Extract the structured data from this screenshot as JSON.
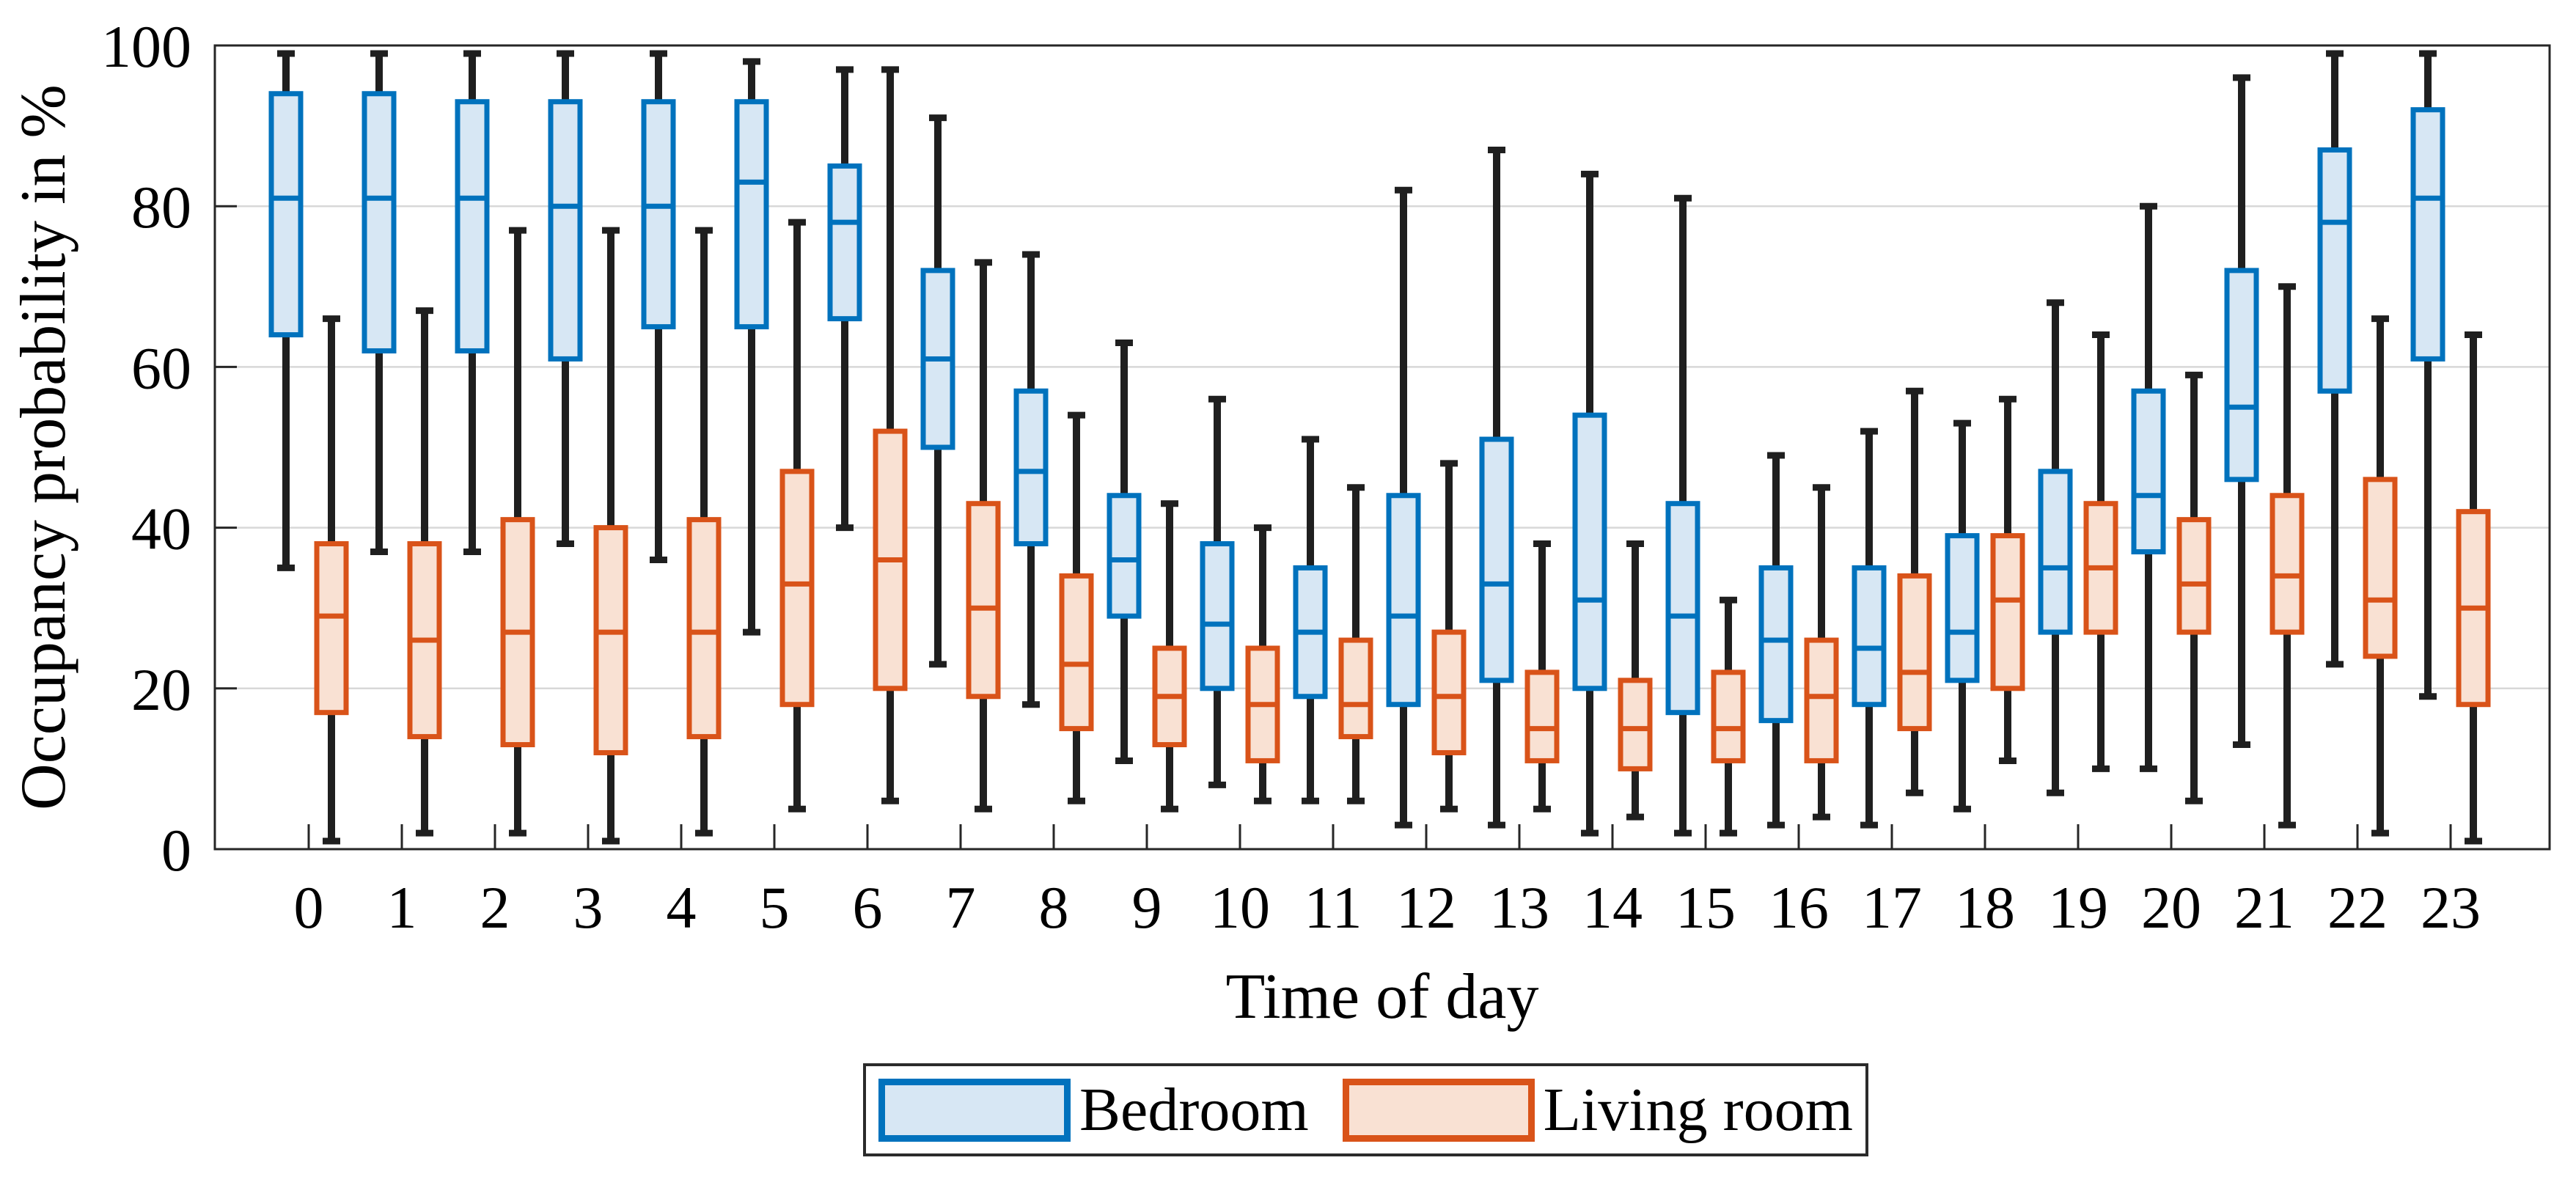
{
  "figure": {
    "background": "#ffffff"
  },
  "chart_data": {
    "type": "boxplot",
    "title": "",
    "xlabel": "Time of day",
    "ylabel": "Occupancy probability in %",
    "x_categories": [
      "0",
      "1",
      "2",
      "3",
      "4",
      "5",
      "6",
      "7",
      "8",
      "9",
      "10",
      "11",
      "12",
      "13",
      "14",
      "15",
      "16",
      "17",
      "18",
      "19",
      "20",
      "21",
      "22",
      "23"
    ],
    "yticks": [
      0,
      20,
      40,
      60,
      80,
      100
    ],
    "ylim": [
      0,
      100
    ],
    "grid": "horizontal",
    "legend_position": "bottom",
    "box_stats_order": [
      "whisker_low",
      "q1",
      "median",
      "q3",
      "whisker_high"
    ],
    "whisker_color": "#1f1f1f",
    "grid_color": "#d8d8d8",
    "axis_color": "#262626",
    "text_color": "#000000",
    "series": [
      {
        "name": "Bedroom",
        "edge_color": "#0072BD",
        "fill_color": "#D7E7F4",
        "boxes": [
          [
            35,
            64,
            81,
            94,
            99
          ],
          [
            37,
            62,
            81,
            94,
            99
          ],
          [
            37,
            62,
            81,
            93,
            99
          ],
          [
            38,
            61,
            80,
            93,
            99
          ],
          [
            36,
            65,
            80,
            93,
            99
          ],
          [
            27,
            65,
            83,
            93,
            98
          ],
          [
            40,
            66,
            78,
            85,
            97
          ],
          [
            23,
            50,
            61,
            72,
            91
          ],
          [
            18,
            38,
            47,
            57,
            74
          ],
          [
            11,
            29,
            36,
            44,
            63
          ],
          [
            8,
            20,
            28,
            38,
            56
          ],
          [
            6,
            19,
            27,
            35,
            51
          ],
          [
            3,
            18,
            29,
            44,
            82
          ],
          [
            3,
            21,
            33,
            51,
            87
          ],
          [
            2,
            20,
            31,
            54,
            84
          ],
          [
            2,
            17,
            29,
            43,
            81
          ],
          [
            3,
            16,
            26,
            35,
            49
          ],
          [
            3,
            18,
            25,
            35,
            52
          ],
          [
            5,
            21,
            27,
            39,
            53
          ],
          [
            7,
            27,
            35,
            47,
            68
          ],
          [
            10,
            37,
            44,
            57,
            80
          ],
          [
            13,
            46,
            55,
            72,
            96
          ],
          [
            23,
            57,
            78,
            87,
            99
          ],
          [
            19,
            61,
            81,
            92,
            99
          ]
        ]
      },
      {
        "name": "Living room",
        "edge_color": "#D95319",
        "fill_color": "#F9E1D3",
        "boxes": [
          [
            1,
            17,
            29,
            38,
            66
          ],
          [
            2,
            14,
            26,
            38,
            67
          ],
          [
            2,
            13,
            27,
            41,
            77
          ],
          [
            1,
            12,
            27,
            40,
            77
          ],
          [
            2,
            14,
            27,
            41,
            77
          ],
          [
            5,
            18,
            33,
            47,
            78
          ],
          [
            6,
            20,
            36,
            52,
            97
          ],
          [
            5,
            19,
            30,
            43,
            73
          ],
          [
            6,
            15,
            23,
            34,
            54
          ],
          [
            5,
            13,
            19,
            25,
            43
          ],
          [
            6,
            11,
            18,
            25,
            40
          ],
          [
            6,
            14,
            18,
            26,
            45
          ],
          [
            5,
            12,
            19,
            27,
            48
          ],
          [
            5,
            11,
            15,
            22,
            38
          ],
          [
            4,
            10,
            15,
            21,
            38
          ],
          [
            2,
            11,
            15,
            22,
            31
          ],
          [
            4,
            11,
            19,
            26,
            45
          ],
          [
            7,
            15,
            22,
            34,
            57
          ],
          [
            11,
            20,
            31,
            39,
            56
          ],
          [
            10,
            27,
            35,
            43,
            64
          ],
          [
            6,
            27,
            33,
            41,
            59
          ],
          [
            3,
            27,
            34,
            44,
            70
          ],
          [
            2,
            24,
            31,
            46,
            66
          ],
          [
            1,
            18,
            30,
            42,
            64
          ]
        ]
      }
    ]
  }
}
